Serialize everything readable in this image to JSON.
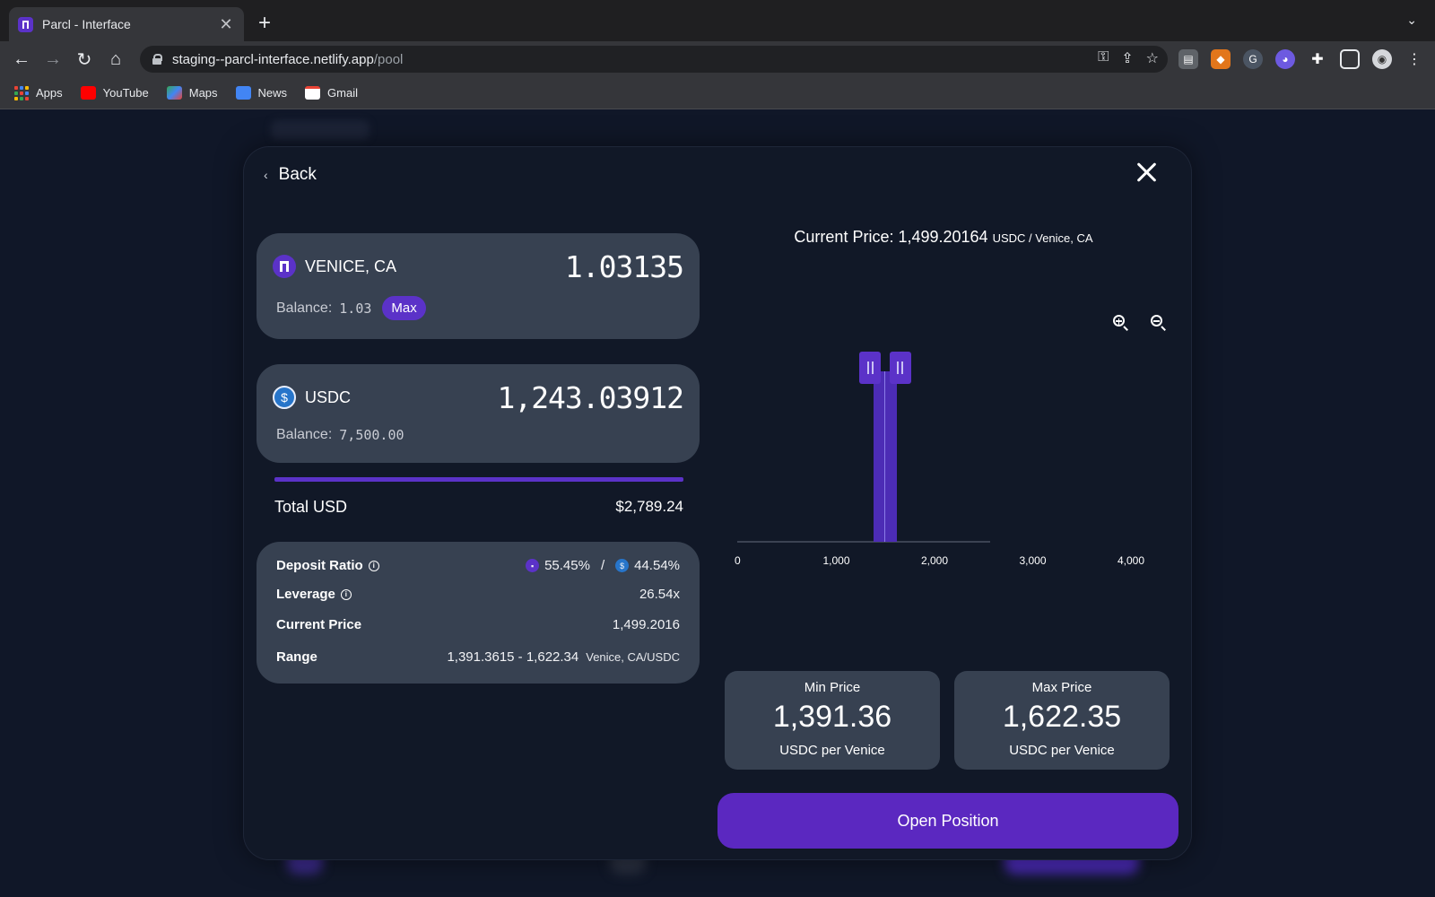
{
  "browser": {
    "tab_title": "Parcl - Interface",
    "url_host": "staging--parcl-interface.netlify.app",
    "url_path": "/pool",
    "bookmarks": [
      "Apps",
      "YouTube",
      "Maps",
      "News",
      "Gmail"
    ]
  },
  "modal": {
    "back_label": "Back",
    "token_a": {
      "symbol": "VENICE, CA",
      "amount": "1.03135",
      "balance_label": "Balance:",
      "balance": "1.03",
      "max_label": "Max"
    },
    "token_b": {
      "symbol": "USDC",
      "amount": "1,243.03912",
      "balance_label": "Balance:",
      "balance": "7,500.00"
    },
    "total": {
      "label": "Total USD",
      "value": "$2,789.24"
    },
    "info": {
      "deposit_ratio_label": "Deposit Ratio",
      "deposit_ratio_a": "55.45%",
      "ratio_sep": "/",
      "deposit_ratio_b": "44.54%",
      "leverage_label": "Leverage",
      "leverage_value": "26.54x",
      "current_price_label": "Current Price",
      "current_price_value": "1,499.2016",
      "range_label": "Range",
      "range_value": "1,391.3615 - 1,622.34",
      "range_unit": "Venice, CA/USDC"
    },
    "chart_header": {
      "prefix": "Current Price: 1,499.20164",
      "unit": "USDC / Venice, CA"
    },
    "min_price": {
      "label": "Min Price",
      "value": "1,391.36",
      "unit": "USDC per Venice"
    },
    "max_price": {
      "label": "Max Price",
      "value": "1,622.35",
      "unit": "USDC per Venice"
    },
    "cta": "Open Position"
  },
  "chart_data": {
    "type": "area",
    "x_ticks": [
      "0",
      "1,000",
      "2,000",
      "3,000",
      "4,000"
    ],
    "xlim": [
      0,
      4000
    ],
    "current_price": 1499.2,
    "range": [
      1391.36,
      1622.35
    ],
    "grid": false
  },
  "colors": {
    "accent": "#5b32c8",
    "card": "#374151",
    "background": "#111827"
  }
}
